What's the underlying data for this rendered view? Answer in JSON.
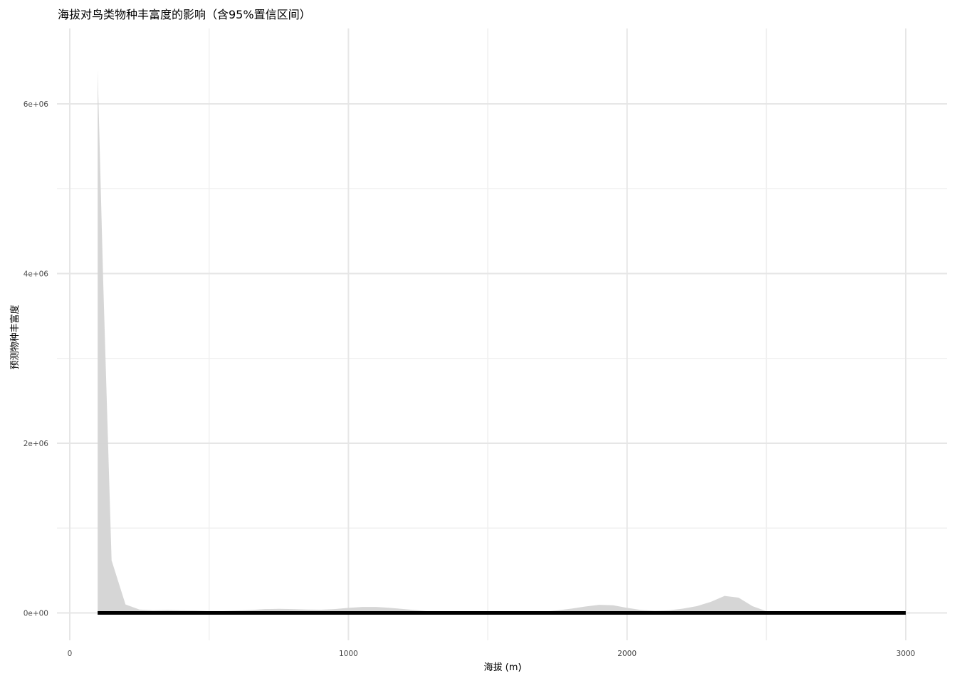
{
  "chart_data": {
    "type": "area",
    "title": "海拔对鸟类物种丰富度的影响（含95%置信区间）",
    "xlabel": "海拔 (m)",
    "ylabel": "预测物种丰富度",
    "xlim": [
      0,
      3150
    ],
    "ylim": [
      -300000,
      6850000
    ],
    "x_ticks": [
      {
        "value": 0,
        "label": "0"
      },
      {
        "value": 1000,
        "label": "1000"
      },
      {
        "value": 2000,
        "label": "2000"
      },
      {
        "value": 3000,
        "label": "3000"
      }
    ],
    "x_minor_ticks": [
      500,
      1500,
      2500
    ],
    "y_ticks": [
      {
        "value": 0,
        "label": "0e+00"
      },
      {
        "value": 2000000,
        "label": "2e+06"
      },
      {
        "value": 4000000,
        "label": "4e+06"
      },
      {
        "value": 6000000,
        "label": "6e+06"
      }
    ],
    "y_minor_ticks": [
      1000000,
      3000000,
      5000000
    ],
    "grid": true,
    "colors": {
      "ribbon": "#d4d4d4",
      "line": "#000000",
      "grid_major": "#e6e6e6",
      "grid_minor": "#f0f0f0"
    },
    "series": [
      {
        "role": "confidence-ribbon",
        "x": [
          100,
          120,
          150,
          200,
          250,
          300,
          350,
          400,
          450,
          500,
          550,
          600,
          650,
          700,
          750,
          800,
          850,
          900,
          950,
          1000,
          1050,
          1100,
          1150,
          1200,
          1250,
          1300,
          1350,
          1400,
          1450,
          1500,
          1550,
          1600,
          1650,
          1700,
          1750,
          1800,
          1850,
          1900,
          1950,
          2000,
          2050,
          2100,
          2150,
          2200,
          2250,
          2300,
          2350,
          2400,
          2450,
          2500,
          2550,
          2600,
          2700,
          2800,
          2900,
          3000
        ],
        "upper": [
          6400000,
          3900000,
          620000,
          100000,
          40000,
          30000,
          35000,
          30000,
          28000,
          22000,
          22000,
          28000,
          35000,
          45000,
          48000,
          45000,
          40000,
          38000,
          45000,
          60000,
          70000,
          70000,
          60000,
          45000,
          30000,
          15000,
          8000,
          5000,
          5000,
          5000,
          5000,
          5000,
          8000,
          15000,
          30000,
          50000,
          75000,
          95000,
          90000,
          60000,
          35000,
          25000,
          30000,
          50000,
          80000,
          130000,
          200000,
          180000,
          80000,
          20000,
          10000,
          5000,
          3000,
          3000,
          3000,
          3000
        ],
        "lower": [
          0,
          0,
          0,
          0,
          0,
          0,
          0,
          0,
          0,
          0,
          0,
          0,
          0,
          0,
          0,
          0,
          0,
          0,
          0,
          0,
          0,
          0,
          0,
          0,
          0,
          0,
          0,
          0,
          0,
          0,
          0,
          0,
          0,
          0,
          0,
          0,
          0,
          0,
          0,
          0,
          0,
          0,
          0,
          0,
          0,
          0,
          0,
          0,
          0,
          0,
          0,
          0,
          0,
          0,
          0,
          0
        ]
      },
      {
        "role": "fitted-line",
        "x": [
          100,
          3000
        ],
        "y": [
          0,
          0
        ]
      }
    ]
  }
}
